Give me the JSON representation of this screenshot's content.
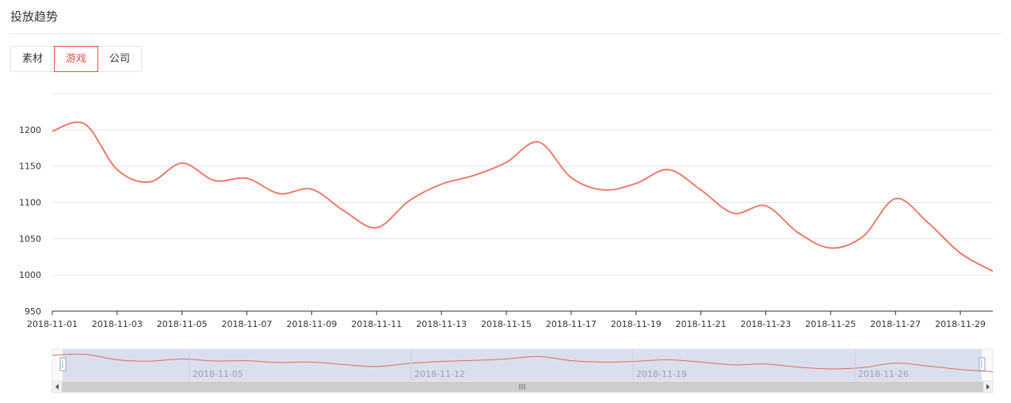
{
  "header": {
    "title": "投放趋势"
  },
  "tabs": [
    {
      "label": "素材",
      "active": false
    },
    {
      "label": "游戏",
      "active": true
    },
    {
      "label": "公司",
      "active": false
    }
  ],
  "colors": {
    "line": "#f07c68",
    "accent": "#e8543f",
    "grid": "#e6e6e6",
    "slider_fill": "#d4d9ec"
  },
  "chart_data": {
    "type": "line",
    "x": [
      "2018-11-01",
      "2018-11-02",
      "2018-11-03",
      "2018-11-04",
      "2018-11-05",
      "2018-11-06",
      "2018-11-07",
      "2018-11-08",
      "2018-11-09",
      "2018-11-10",
      "2018-11-11",
      "2018-11-12",
      "2018-11-13",
      "2018-11-14",
      "2018-11-15",
      "2018-11-16",
      "2018-11-17",
      "2018-11-18",
      "2018-11-19",
      "2018-11-20",
      "2018-11-21",
      "2018-11-22",
      "2018-11-23",
      "2018-11-24",
      "2018-11-25",
      "2018-11-26",
      "2018-11-27",
      "2018-11-28",
      "2018-11-29",
      "2018-11-30"
    ],
    "series": [
      {
        "values": [
          1198,
          1208,
          1145,
          1128,
          1154,
          1130,
          1133,
          1112,
          1118,
          1088,
          1065,
          1102,
          1125,
          1137,
          1155,
          1183,
          1134,
          1117,
          1126,
          1145,
          1117,
          1085,
          1095,
          1058,
          1037,
          1053,
          1105,
          1072,
          1030,
          1005
        ]
      }
    ],
    "ylim": [
      950,
      1250
    ],
    "yticks": [
      950,
      1000,
      1050,
      1100,
      1150,
      1200
    ],
    "xtick_labels": [
      "2018-11-01",
      "2018-11-03",
      "2018-11-05",
      "2018-11-07",
      "2018-11-09",
      "2018-11-11",
      "2018-11-13",
      "2018-11-15",
      "2018-11-17",
      "2018-11-19",
      "2018-11-21",
      "2018-11-23",
      "2018-11-25",
      "2018-11-27",
      "2018-11-29"
    ],
    "grid": true,
    "datazoom": {
      "start_date": "2018-11-01",
      "end_date": "2018-11-30",
      "labels": [
        "2018-11-05",
        "2018-11-12",
        "2018-11-19",
        "2018-11-26"
      ],
      "handle_icon": "drag-handle-icon",
      "scroll_grip_icon": "grip-icon",
      "scroll_left_icon": "arrow-left-icon",
      "scroll_right_icon": "arrow-right-icon"
    }
  }
}
